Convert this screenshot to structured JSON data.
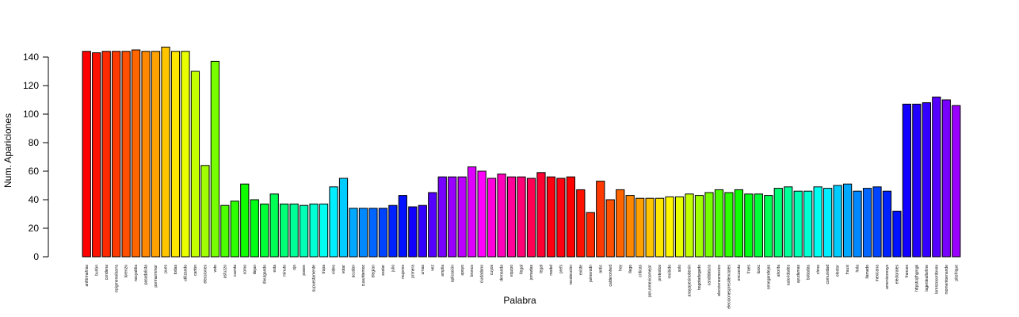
{
  "chart_data": {
    "type": "bar",
    "title": "",
    "xlabel": "Palabra",
    "ylabel": "Num. Apariciones",
    "ylim": [
      0,
      150
    ],
    "yticks": [
      0,
      20,
      40,
      60,
      80,
      100,
      120,
      140
    ],
    "grid": false,
    "legend": "none",
    "colormap": "rainbow",
    "categories": [
      "anfitrmafrias",
      "burlón",
      "condena",
      "epigmenoibarra",
      "lorenzo",
      "nocyaldia",
      "pasadalista",
      "pormarmmor",
      "pues",
      "todas",
      "utilizando",
      "cartón",
      "elecciones",
      "voto",
      "asfuzzo",
      "cuenta",
      "como",
      "dejan",
      "divulgando",
      "esta",
      "minuto",
      "ojo",
      "posee",
      "supuestamente",
      "tropa",
      "video",
      "votar",
      "acudan",
      "cuauhtemoc",
      "elegían",
      "esolar",
      "julio",
      "mujeres",
      "primera",
      "urnas",
      "vez",
      "amplia",
      "aplicación",
      "apoyo",
      "bronco",
      "ciudadano",
      "cuyos",
      "demanda",
      "equipo",
      "llegal",
      "jornadas",
      "legal",
      "model",
      "prefs",
      "recolección",
      "existe",
      "jaimerodri",
      "antic",
      "calderonhed",
      "hoy",
      "llego",
      "criticas",
      "porunmexicomejor",
      "pretextos",
      "recibido",
      "solo",
      "anayayesinobenin",
      "bogotadegado",
      "candidatura",
      "eleccionesmexico",
      "eleccionespresidenciales",
      "encuesta",
      "fraes",
      "loxxc",
      "cenegandejas",
      "ahorita",
      "autoridades",
      "ayudamas",
      "bobadas",
      "chino",
      "comunidad",
      "elector",
      "frausi",
      "hola",
      "llamado",
      "mexicana",
      "amenicoresys",
      "electorales",
      "frances",
      "httpstcqfhgmgk",
      "lagenteallorline",
      "lorenzocordovav",
      "momentoenande",
      "pbsfrique"
    ],
    "values": [
      144,
      143,
      144,
      144,
      144,
      145,
      144,
      144,
      147,
      144,
      144,
      130,
      64,
      137,
      36,
      39,
      51,
      40,
      37,
      44,
      37,
      37,
      36,
      37,
      37,
      49,
      55,
      34,
      34,
      34,
      34,
      36,
      43,
      35,
      36,
      45,
      56,
      56,
      56,
      63,
      60,
      55,
      58,
      56,
      56,
      55,
      59,
      56,
      55,
      56,
      47,
      31,
      53,
      40,
      47,
      43,
      41,
      41,
      41,
      42,
      42,
      44,
      43,
      45,
      47,
      45,
      47,
      44,
      44,
      43,
      48,
      49,
      46,
      46,
      49,
      48,
      50,
      51,
      46,
      48,
      49,
      46,
      32,
      107,
      107,
      108,
      112,
      110,
      106
    ],
    "colors": [
      "#FF0000",
      "#FF1100",
      "#FF2A00",
      "#FF3A00",
      "#FF5000",
      "#FF6600",
      "#FF8800",
      "#FFA200",
      "#FFC600",
      "#FFE800",
      "#E8FF00",
      "#C4FF00",
      "#A0FF00",
      "#77FF00",
      "#4CFF00",
      "#2EFF00",
      "#10FF00",
      "#00FF14",
      "#00FF36",
      "#00FF55",
      "#00FF77",
      "#00FF99",
      "#00FFB4",
      "#00FFD2",
      "#00FFF0",
      "#00EEFF",
      "#00CCFF",
      "#00A8FF",
      "#0088FF",
      "#0066FF",
      "#0044FF",
      "#0022FF",
      "#0011FF",
      "#1100FF",
      "#3300FF",
      "#5500FF",
      "#7700FF",
      "#9900FF",
      "#BB00FF",
      "#DD00FF",
      "#FF00FF",
      "#FF00DD",
      "#FF00BB",
      "#FF0099",
      "#FF0077",
      "#FF0055",
      "#FF0033",
      "#FF0011",
      "#FF0010",
      "#FF0000",
      "#FF1100",
      "#FF2A00",
      "#FF3A00",
      "#FF5000",
      "#FF6600",
      "#FF8800",
      "#FFA200",
      "#FFC600",
      "#FFE800",
      "#FFF700",
      "#E8FF00",
      "#C4FF00",
      "#A0FF00",
      "#77FF00",
      "#4CFF00",
      "#2EFF00",
      "#10FF00",
      "#00FF14",
      "#00FF36",
      "#00FF55",
      "#00FF77",
      "#00FF99",
      "#00FFB4",
      "#00FFD2",
      "#00FFF0",
      "#00EEFF",
      "#00CCFF",
      "#00A8FF",
      "#0088FF",
      "#0066FF",
      "#0044FF",
      "#0022FF",
      "#0011FF",
      "#1100FF",
      "#2200FF",
      "#3300FF",
      "#5500FF",
      "#7700FF",
      "#9900FF"
    ]
  }
}
